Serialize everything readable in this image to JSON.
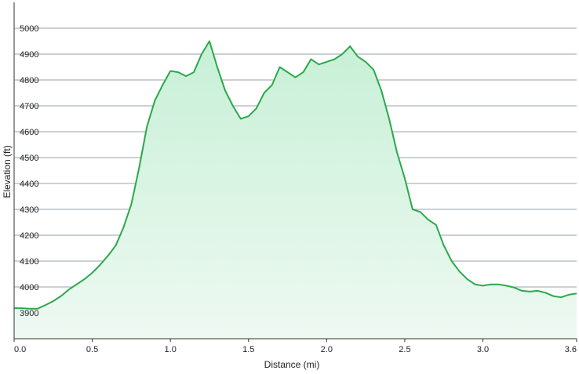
{
  "chart_data": {
    "type": "area",
    "title": "",
    "xlabel": "Distance  (mi)",
    "ylabel": "Elevation (ft)",
    "xlim": [
      0,
      3.6
    ],
    "ylim": [
      3800,
      5100
    ],
    "x_ticks": [
      0.0,
      0.5,
      1.0,
      1.5,
      2.0,
      2.5,
      3.0,
      3.6
    ],
    "x_tick_labels": [
      "0.0",
      "0.5",
      "1.0",
      "1.5",
      "2.0",
      "2.5",
      "3.0",
      "3.6"
    ],
    "y_ticks": [
      3900,
      4000,
      4100,
      4200,
      4300,
      4400,
      4500,
      4600,
      4700,
      4800,
      4900,
      5000
    ],
    "y_tick_labels": [
      "3900",
      "4000",
      "4100",
      "4200",
      "4300",
      "4400",
      "4500",
      "4600",
      "4700",
      "4800",
      "4900",
      "5000"
    ],
    "grid": true,
    "legend": "none",
    "colors": {
      "line": "#2aa84a",
      "fill_top": "#c7f0d6",
      "fill_bottom": "#eef9f2",
      "grid": "#9aa2ae",
      "axis": "#333333"
    },
    "series": [
      {
        "x": [
          0.0,
          0.05,
          0.1,
          0.15,
          0.2,
          0.25,
          0.3,
          0.35,
          0.4,
          0.45,
          0.5,
          0.55,
          0.6,
          0.65,
          0.7,
          0.75,
          0.8,
          0.85,
          0.9,
          0.95,
          1.0,
          1.05,
          1.1,
          1.15,
          1.2,
          1.25,
          1.3,
          1.35,
          1.4,
          1.45,
          1.5,
          1.55,
          1.6,
          1.65,
          1.7,
          1.75,
          1.8,
          1.85,
          1.9,
          1.95,
          2.0,
          2.05,
          2.1,
          2.15,
          2.2,
          2.25,
          2.3,
          2.35,
          2.4,
          2.45,
          2.5,
          2.55,
          2.6,
          2.65,
          2.7,
          2.75,
          2.8,
          2.85,
          2.9,
          2.95,
          3.0,
          3.05,
          3.1,
          3.15,
          3.2,
          3.25,
          3.3,
          3.35,
          3.4,
          3.45,
          3.5,
          3.55,
          3.6
        ],
        "y": [
          3918,
          3918,
          3916,
          3916,
          3930,
          3945,
          3965,
          3990,
          4010,
          4030,
          4055,
          4085,
          4120,
          4160,
          4230,
          4320,
          4460,
          4620,
          4720,
          4780,
          4835,
          4830,
          4815,
          4830,
          4900,
          4950,
          4850,
          4760,
          4700,
          4650,
          4660,
          4690,
          4750,
          4780,
          4850,
          4830,
          4810,
          4830,
          4880,
          4860,
          4870,
          4880,
          4900,
          4930,
          4890,
          4870,
          4840,
          4760,
          4650,
          4520,
          4420,
          4300,
          4290,
          4260,
          4240,
          4160,
          4100,
          4060,
          4030,
          4010,
          4005,
          4010,
          4010,
          4005,
          3998,
          3985,
          3982,
          3985,
          3978,
          3965,
          3960,
          3970,
          3975
        ]
      }
    ]
  }
}
